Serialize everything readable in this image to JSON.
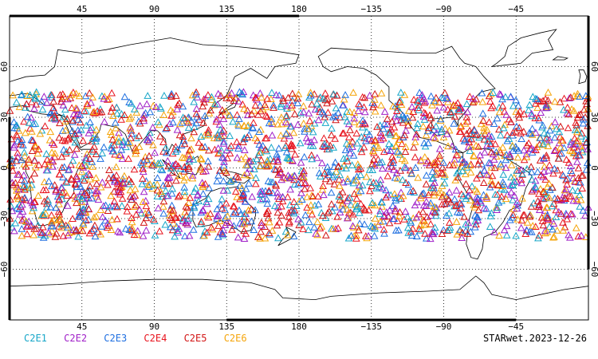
{
  "map": {
    "projection": "cylindrical equidistant, center 180",
    "lon_range": [
      0,
      360
    ],
    "lat_range": [
      -90,
      90
    ],
    "grid": "dotted",
    "lon_ticks": [
      "45",
      "90",
      "135",
      "180",
      "−135",
      "−90",
      "−45"
    ],
    "lat_ticks": [
      "60",
      "30",
      "0",
      "−30",
      "−60"
    ],
    "marker": "open-triangle",
    "observation_band_lat": [
      -42,
      45
    ]
  },
  "legend": [
    {
      "label": "C2E1",
      "color": "#17a6c8"
    },
    {
      "label": "C2E2",
      "color": "#a020c8"
    },
    {
      "label": "C2E3",
      "color": "#1f6fe0"
    },
    {
      "label": "C2E4",
      "color": "#e8141e"
    },
    {
      "label": "C2E5",
      "color": "#d21414"
    },
    {
      "label": "C2E6",
      "color": "#f5a40a"
    }
  ],
  "product_label": "STARwet.2023-12-26"
}
